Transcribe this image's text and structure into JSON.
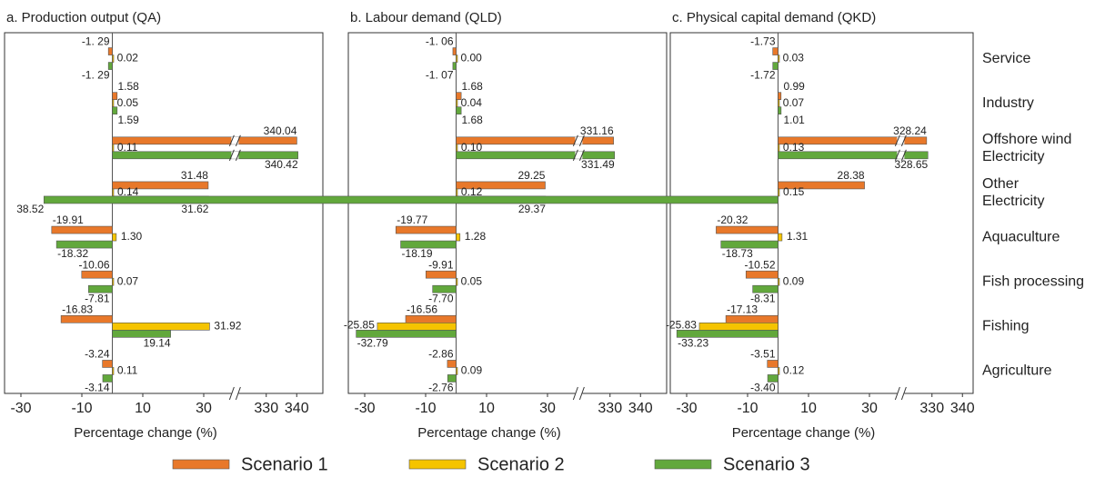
{
  "chart_data": {
    "type": "bar",
    "orientation": "horizontal",
    "categories": [
      "Service",
      "Industry",
      [
        "Offshore wind",
        "Electricity"
      ],
      [
        "Other",
        "Electricity"
      ],
      "Aquaculture",
      "Fish processing",
      "Fishing",
      "Agriculture"
    ],
    "series": [
      {
        "name": "Scenario 1",
        "color": "#e8782a"
      },
      {
        "name": "Scenario 2",
        "color": "#f5c400"
      },
      {
        "name": "Scenario 3",
        "color": "#62a83c"
      }
    ],
    "xlabel": "Percentage change (%)",
    "xlim": [
      -30,
      340
    ],
    "xticks": [
      -30,
      -10,
      10,
      30,
      330,
      340
    ],
    "axis_break": [
      35,
      325
    ],
    "panels": [
      {
        "title": "a. Production output (QA)",
        "series": [
          {
            "values": [
              -1.29,
              1.58,
              340.04,
              31.48,
              -19.91,
              -10.06,
              -16.83,
              -3.24
            ],
            "value_labels": [
              "-1. 29",
              "1.58",
              "340.04",
              "31.48",
              "-19.91",
              "-10.06",
              "-16.83",
              "-3.24"
            ]
          },
          {
            "values": [
              0.02,
              0.05,
              0.11,
              0.14,
              1.3,
              0.07,
              31.92,
              0.11
            ],
            "value_labels": [
              "0.02",
              "0.05",
              "0.11",
              "0.14",
              "1.30",
              "0.07",
              "31.92",
              "0.11"
            ]
          },
          {
            "values": [
              -1.29,
              1.59,
              340.42,
              31.62,
              -18.32,
              -7.81,
              19.14,
              -3.14
            ],
            "value_labels": [
              "-1. 29",
              "1.59",
              "340.42",
              "31.62",
              "-18.32",
              "-7.81",
              "19.14",
              "-3.14"
            ]
          }
        ]
      },
      {
        "title": "b. Labour demand (QLD)",
        "series": [
          {
            "values": [
              -1.06,
              1.68,
              331.16,
              29.25,
              -19.77,
              -9.91,
              -16.56,
              -2.86
            ],
            "value_labels": [
              "-1. 06",
              "1.68",
              "331.16",
              "29.25",
              "-19.77",
              "-9.91",
              "-16.56",
              "-2.86"
            ]
          },
          {
            "values": [
              0,
              0.04,
              0.1,
              0.12,
              1.28,
              0.05,
              -25.85,
              0.09
            ],
            "value_labels": [
              "0.00",
              "0.04",
              "0.10",
              "0.12",
              "1.28",
              "0.05",
              "-25.85",
              "0.09"
            ]
          },
          {
            "values": [
              -1.07,
              1.68,
              331.49,
              29.37,
              -18.19,
              -7.7,
              -32.79,
              -2.76
            ],
            "value_labels": [
              "-1. 07",
              "1.68",
              "331.49",
              "29.37",
              "-18.19",
              "-7.70",
              "-32.79",
              "-2.76"
            ]
          }
        ]
      },
      {
        "title": "c. Physical capital demand (QKD)",
        "series": [
          {
            "values": [
              -1.73,
              0.99,
              328.24,
              28.38,
              -20.32,
              -10.52,
              -17.13,
              -3.51
            ],
            "value_labels": [
              "-1.73",
              "0.99",
              "328.24",
              "28.38",
              "-20.32",
              "-10.52",
              "-17.13",
              "-3.51"
            ]
          },
          {
            "values": [
              0.03,
              0.07,
              0.13,
              0.15,
              1.31,
              0.09,
              -25.83,
              0.12
            ],
            "value_labels": [
              "0.03",
              "0.07",
              "0.13",
              "0.15",
              "1.31",
              "0.09",
              "-25.83",
              "0.12"
            ]
          },
          {
            "values": [
              -1.72,
              1.01,
              328.65,
              38.52,
              -18.73,
              -8.31,
              -33.23,
              -3.4
            ],
            "value_labels": [
              "-1.72",
              "1.01",
              "328.65",
              "38.52",
              "-18.73",
              "-8.31",
              "-33.23",
              "-3.40"
            ]
          }
        ]
      }
    ]
  }
}
